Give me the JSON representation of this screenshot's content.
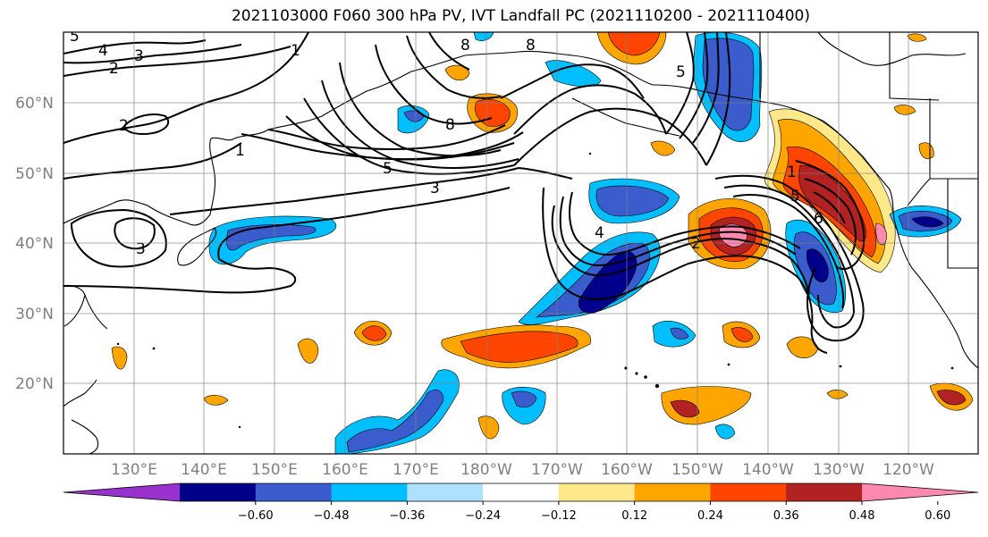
{
  "title": "2021103000 F060 300 hPa PV, IVT Landfall PC (2021110200 - 2021110400)",
  "lat_labels": [
    "60°N",
    "50°N",
    "40°N",
    "30°N",
    "20°N"
  ],
  "lon_labels": [
    "130°E",
    "140°E",
    "150°E",
    "160°E",
    "170°E",
    "180°W",
    "170°W",
    "160°W",
    "150°W",
    "140°W",
    "130°W",
    "120°W"
  ],
  "colorbar": {
    "colors": [
      "#9932cc",
      "#00008b",
      "#3a5ccc",
      "#00bfff",
      "#b0e0ff",
      "#ffffff",
      "#ffe88a",
      "#ffa500",
      "#ff4500",
      "#b22222",
      "#ff88b0"
    ],
    "tick_labels": [
      "−0.60",
      "−0.48",
      "−0.36",
      "−0.24",
      "−0.12",
      "0.12",
      "0.24",
      "0.36",
      "0.48",
      "0.60"
    ]
  },
  "pv_contour_labels": [
    "1",
    "2",
    "3",
    "4",
    "5",
    "6",
    "8"
  ]
}
